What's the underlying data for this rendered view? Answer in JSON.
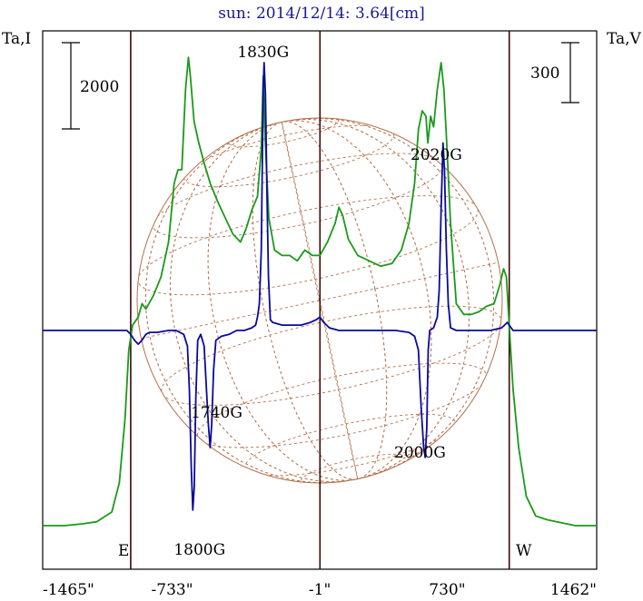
{
  "chart_data": {
    "type": "line",
    "title": "sun: 2014/12/14: 3.64[cm]",
    "left_axis_label": "Ta,I",
    "right_axis_label": "Ta,V",
    "left_scale_bar": "2000",
    "right_scale_bar": "300",
    "x_ticks": [
      "-1465\"",
      "-733\"",
      "-1\"",
      "730\"",
      "1462\""
    ],
    "x_tick_values": [
      -1465,
      -733,
      -1,
      730,
      1462
    ],
    "xlim": [
      -1465,
      1462
    ],
    "limb_labels": {
      "east": "E",
      "west": "W"
    },
    "limb_positions": [
      -1000,
      1000
    ],
    "center_position": 0,
    "grid": false,
    "annotations": [
      {
        "text": "1830G",
        "x": -300
      },
      {
        "text": "2020G",
        "x": 650
      },
      {
        "text": "1740G",
        "x": -570
      },
      {
        "text": "2000G",
        "x": 560
      },
      {
        "text": "1800G",
        "x": -660
      }
    ],
    "series": [
      {
        "color": "#1a9a1a",
        "points": [
          [
            -1465,
            -1.0
          ],
          [
            -1350,
            -1.0
          ],
          [
            -1250,
            -0.99
          ],
          [
            -1180,
            -0.98
          ],
          [
            -1100,
            -0.93
          ],
          [
            -1060,
            -0.78
          ],
          [
            -1030,
            -0.45
          ],
          [
            -1010,
            -0.1
          ],
          [
            -990,
            0.02
          ],
          [
            -960,
            0.05
          ],
          [
            -940,
            0.1
          ],
          [
            -920,
            0.08
          ],
          [
            -880,
            0.13
          ],
          [
            -840,
            0.2
          ],
          [
            -800,
            0.33
          ],
          [
            -770,
            0.55
          ],
          [
            -750,
            0.6
          ],
          [
            -730,
            0.6
          ],
          [
            -710,
            0.9
          ],
          [
            -695,
            1.02
          ],
          [
            -685,
            0.95
          ],
          [
            -665,
            0.78
          ],
          [
            -640,
            0.7
          ],
          [
            -610,
            0.62
          ],
          [
            -580,
            0.55
          ],
          [
            -540,
            0.48
          ],
          [
            -500,
            0.42
          ],
          [
            -460,
            0.36
          ],
          [
            -420,
            0.33
          ],
          [
            -390,
            0.38
          ],
          [
            -360,
            0.45
          ],
          [
            -330,
            0.5
          ],
          [
            -310,
            0.68
          ],
          [
            -300,
            0.95
          ],
          [
            -290,
            0.72
          ],
          [
            -270,
            0.42
          ],
          [
            -240,
            0.3
          ],
          [
            -200,
            0.28
          ],
          [
            -160,
            0.28
          ],
          [
            -120,
            0.26
          ],
          [
            -80,
            0.3
          ],
          [
            -40,
            0.28
          ],
          [
            0,
            0.28
          ],
          [
            40,
            0.33
          ],
          [
            80,
            0.4
          ],
          [
            100,
            0.46
          ],
          [
            120,
            0.43
          ],
          [
            150,
            0.34
          ],
          [
            200,
            0.28
          ],
          [
            260,
            0.26
          ],
          [
            320,
            0.24
          ],
          [
            380,
            0.25
          ],
          [
            430,
            0.3
          ],
          [
            470,
            0.4
          ],
          [
            500,
            0.55
          ],
          [
            520,
            0.75
          ],
          [
            540,
            0.82
          ],
          [
            560,
            0.8
          ],
          [
            570,
            0.7
          ],
          [
            585,
            0.8
          ],
          [
            600,
            0.76
          ],
          [
            620,
            0.9
          ],
          [
            640,
            1.0
          ],
          [
            655,
            0.9
          ],
          [
            670,
            0.7
          ],
          [
            690,
            0.4
          ],
          [
            720,
            0.1
          ],
          [
            760,
            0.06
          ],
          [
            800,
            0.06
          ],
          [
            840,
            0.07
          ],
          [
            880,
            0.09
          ],
          [
            920,
            0.1
          ],
          [
            950,
            0.17
          ],
          [
            970,
            0.23
          ],
          [
            985,
            0.2
          ],
          [
            1000,
            0.02
          ],
          [
            1020,
            -0.3
          ],
          [
            1050,
            -0.6
          ],
          [
            1090,
            -0.85
          ],
          [
            1140,
            -0.95
          ],
          [
            1200,
            -0.97
          ],
          [
            1300,
            -0.99
          ],
          [
            1350,
            -1.0
          ],
          [
            1462,
            -1.0
          ]
        ]
      },
      {
        "color": "#0a0a9a",
        "points": [
          [
            -1465,
            0.0
          ],
          [
            -1100,
            0.0
          ],
          [
            -1020,
            0.0
          ],
          [
            -1000,
            -0.02
          ],
          [
            -980,
            -0.05
          ],
          [
            -960,
            -0.07
          ],
          [
            -940,
            -0.05
          ],
          [
            -920,
            -0.02
          ],
          [
            -900,
            -0.01
          ],
          [
            -860,
            -0.01
          ],
          [
            -800,
            0.0
          ],
          [
            -760,
            0.0
          ],
          [
            -720,
            -0.02
          ],
          [
            -700,
            -0.08
          ],
          [
            -690,
            -0.3
          ],
          [
            -680,
            -0.7
          ],
          [
            -672,
            -0.92
          ],
          [
            -664,
            -0.8
          ],
          [
            -656,
            -0.35
          ],
          [
            -646,
            -0.05
          ],
          [
            -630,
            -0.02
          ],
          [
            -612,
            -0.08
          ],
          [
            -600,
            -0.3
          ],
          [
            -590,
            -0.48
          ],
          [
            -580,
            -0.6
          ],
          [
            -572,
            -0.48
          ],
          [
            -562,
            -0.2
          ],
          [
            -550,
            -0.05
          ],
          [
            -520,
            -0.03
          ],
          [
            -480,
            -0.02
          ],
          [
            -440,
            0.0
          ],
          [
            -400,
            0.0
          ],
          [
            -360,
            0.01
          ],
          [
            -340,
            0.02
          ],
          [
            -330,
            0.05
          ],
          [
            -320,
            0.1
          ],
          [
            -310,
            0.3
          ],
          [
            -300,
            0.9
          ],
          [
            -295,
            1.0
          ],
          [
            -288,
            0.88
          ],
          [
            -280,
            0.5
          ],
          [
            -272,
            0.2
          ],
          [
            -262,
            0.04
          ],
          [
            -250,
            0.03
          ],
          [
            -200,
            0.02
          ],
          [
            -150,
            0.02
          ],
          [
            -100,
            0.02
          ],
          [
            -50,
            0.03
          ],
          [
            -20,
            0.04
          ],
          [
            0,
            0.05
          ],
          [
            20,
            0.03
          ],
          [
            50,
            0.01
          ],
          [
            100,
            0.0
          ],
          [
            200,
            0.0
          ],
          [
            300,
            0.0
          ],
          [
            400,
            0.0
          ],
          [
            470,
            -0.01
          ],
          [
            500,
            -0.03
          ],
          [
            520,
            -0.1
          ],
          [
            535,
            -0.4
          ],
          [
            548,
            -0.6
          ],
          [
            556,
            -0.65
          ],
          [
            564,
            -0.5
          ],
          [
            572,
            -0.1
          ],
          [
            580,
            0.0
          ],
          [
            600,
            0.01
          ],
          [
            620,
            0.05
          ],
          [
            630,
            0.15
          ],
          [
            640,
            0.45
          ],
          [
            650,
            0.7
          ],
          [
            658,
            0.6
          ],
          [
            668,
            0.3
          ],
          [
            678,
            0.1
          ],
          [
            690,
            0.01
          ],
          [
            720,
            0.0
          ],
          [
            800,
            0.0
          ],
          [
            900,
            0.0
          ],
          [
            960,
            0.01
          ],
          [
            990,
            0.03
          ],
          [
            1000,
            0.02
          ],
          [
            1020,
            0.0
          ],
          [
            1100,
            0.0
          ],
          [
            1300,
            0.0
          ],
          [
            1462,
            0.0
          ]
        ]
      }
    ]
  }
}
